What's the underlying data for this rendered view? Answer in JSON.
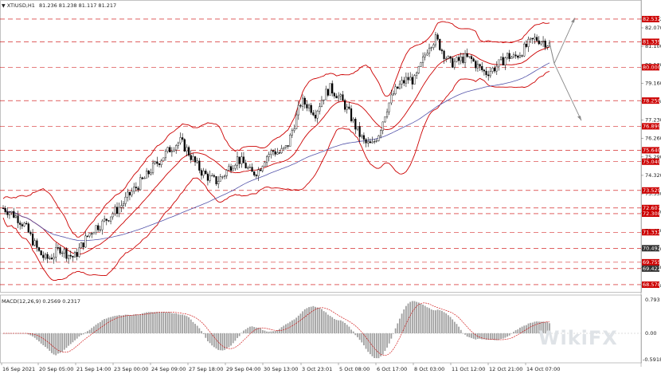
{
  "header": {
    "symbol_label": "XTIUSD,H1",
    "ohlc_text": "81.236 81.238 81.117 81.217",
    "dropdown_glyph": "▼"
  },
  "macd": {
    "label": "MACD(12,26,9) 0.2569 0.2317",
    "scale_top": "0.793",
    "scale_zero": "0.00",
    "scale_bottom": "-0.5918"
  },
  "watermark": "WikiFX",
  "colors": {
    "background": "#ffffff",
    "grid": "#c8c8c8",
    "candle": "#000000",
    "bollinger": "#cc0000",
    "moving_average": "#5555aa",
    "level_line": "#cc0000",
    "level_badge": "#cc0000",
    "highlight_badge": "#333333",
    "projection": "#888888",
    "macd_hist": "#a0a0a0",
    "macd_signal": "#cc0000"
  },
  "chart_data": {
    "type": "candlestick",
    "symbol": "XTIUSD",
    "timeframe": "H1",
    "ylim": [
      68.2,
      83.2
    ],
    "x_labels": [
      "16 Sep 2021",
      "20 Sep 05:00",
      "21 Sep 14:00",
      "23 Sep 00:00",
      "24 Sep 09:00",
      "27 Sep 18:00",
      "29 Sep 04:00",
      "30 Sep 13:00",
      "3 Oct 23:01",
      "5 Oct 08:00",
      "6 Oct 17:00",
      "8 Oct 03:00",
      "11 Oct 12:00",
      "12 Oct 21:00",
      "14 Oct 07:00"
    ],
    "price_ticks": [
      "82.532",
      "82.070",
      "81.100",
      "80.130",
      "79.160",
      "78.190",
      "77.230",
      "76.260",
      "75.290",
      "74.320",
      "73.350",
      "72.380",
      "71.410",
      "70.450",
      "69.480",
      "68.510"
    ],
    "level_badges": [
      {
        "text": "82.532",
        "value": 82.532
      },
      {
        "text": "81.339",
        "value": 81.339
      },
      {
        "text": "80.000",
        "value": 80.0
      },
      {
        "text": "78.250",
        "value": 78.25
      },
      {
        "text": "76.899",
        "value": 76.899
      },
      {
        "text": "75.640",
        "value": 75.64
      },
      {
        "text": "75.040",
        "value": 75.04
      },
      {
        "text": "73.529",
        "value": 73.529
      },
      {
        "text": "72.607",
        "value": 72.607
      },
      {
        "text": "72.308",
        "value": 72.308
      },
      {
        "text": "71.332",
        "value": 71.332
      },
      {
        "text": "70.492",
        "value": 70.492
      },
      {
        "text": "69.755",
        "value": 69.755
      },
      {
        "text": "69.422",
        "value": 69.422
      },
      {
        "text": "68.578",
        "value": 68.578
      }
    ],
    "highlight_badges": [
      "70.492",
      "69.422"
    ],
    "current_price": 81.217,
    "close_path": [
      72.6,
      72.4,
      72.1,
      71.7,
      71.0,
      70.3,
      69.9,
      70.1,
      70.5,
      70.2,
      70.0,
      70.6,
      71.2,
      71.6,
      71.8,
      72.2,
      72.5,
      72.9,
      73.4,
      73.8,
      74.2,
      74.7,
      75.1,
      75.5,
      75.9,
      76.1,
      75.6,
      75.0,
      74.5,
      74.2,
      74.0,
      74.3,
      74.8,
      75.2,
      74.9,
      74.4,
      74.6,
      75.3,
      75.6,
      75.5,
      75.8,
      77.0,
      78.2,
      78.0,
      77.6,
      78.4,
      78.9,
      78.6,
      78.1,
      77.4,
      76.6,
      76.0,
      75.9,
      76.6,
      77.8,
      78.6,
      79.1,
      79.4,
      79.3,
      80.2,
      81.2,
      81.5,
      80.8,
      80.2,
      80.3,
      80.5,
      80.4,
      80.0,
      79.7,
      79.9,
      80.2,
      80.6,
      80.5,
      80.8,
      81.2,
      81.5,
      81.4,
      81.2
    ],
    "projection": {
      "up_target": 82.6,
      "down_target": 77.2
    }
  }
}
